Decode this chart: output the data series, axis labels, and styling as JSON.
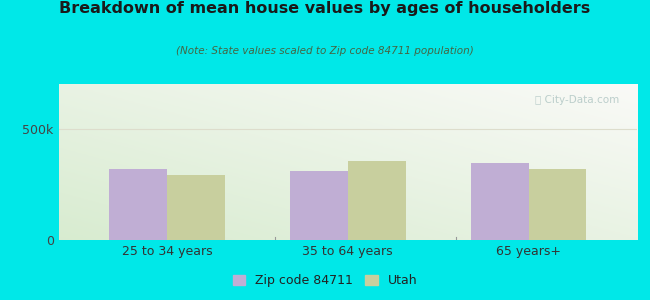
{
  "title": "Breakdown of mean house values by ages of householders",
  "subtitle": "(Note: State values scaled to Zip code 84711 population)",
  "categories": [
    "25 to 34 years",
    "35 to 64 years",
    "65 years+"
  ],
  "zip_values": [
    320000,
    310000,
    345000
  ],
  "utah_values": [
    290000,
    355000,
    320000
  ],
  "ylim": [
    0,
    700000
  ],
  "ytick_labels": [
    "0",
    "500k"
  ],
  "ytick_values": [
    0,
    500000
  ],
  "zip_color": "#c0aed4",
  "utah_color": "#c8cf9e",
  "background_color": "#00e8e8",
  "legend_zip": "Zip code 84711",
  "legend_utah": "Utah",
  "bar_width": 0.32,
  "watermark": "City-Data.com"
}
